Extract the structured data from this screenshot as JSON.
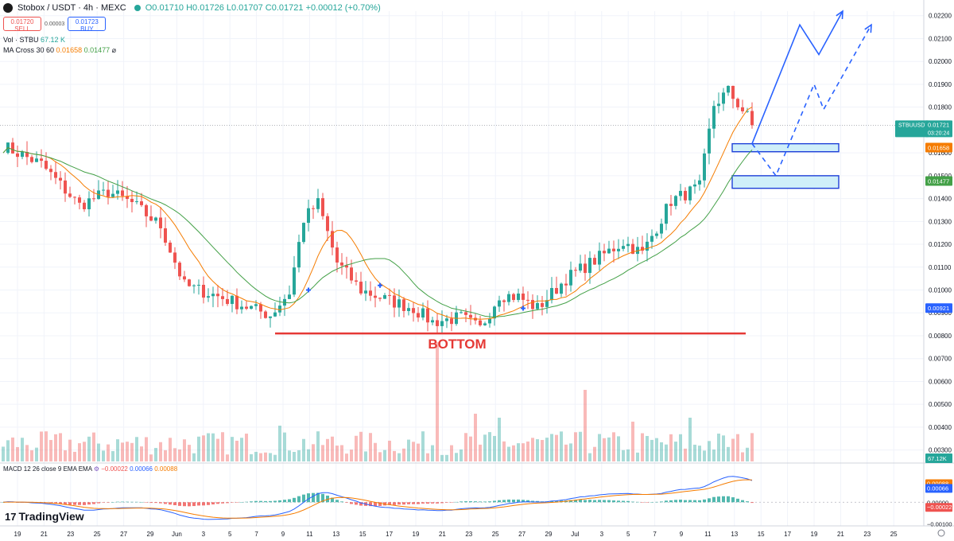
{
  "header": {
    "pair": "Stobox / USDT · 4h · MEXC",
    "ohlc": "O0.01710 H0.01726 L0.01707 C0.01721 +0.00012 (+0.70%)",
    "sell_price": "0.01720",
    "sell_label": "SELL",
    "spread": "0.00003",
    "buy_price": "0.01723",
    "buy_label": "BUY",
    "vol_label": "Vol · STBU",
    "vol_value": "67.12 K",
    "ma_label": "MA Cross 30 60",
    "ma_fast_value": "0.01658",
    "ma_slow_value": "0.01477",
    "ma_suffix": "⌀",
    "macd_label": "MACD 12 26 close 9 EMA EMA",
    "macd_hist_value": "−0.00022",
    "macd_value": "0.00066",
    "macd_signal_value": "0.00088",
    "tv_brand": "TradingView",
    "tv_mark": "17"
  },
  "colors": {
    "up": "#26a69a",
    "down": "#ef5350",
    "ma_fast": "#f57c00",
    "ma_slow": "#43a047",
    "projection": "#2962ff",
    "support": "#e53935",
    "zone_fill": "#cfeff9",
    "zone_border": "#1e40d8"
  },
  "chart_data": {
    "type": "candlestick",
    "price_axis": {
      "ticks": [
        "0.02200",
        "0.02100",
        "0.02000",
        "0.01900",
        "0.01800",
        "0.01600",
        "0.01500",
        "0.01400",
        "0.01300",
        "0.01200",
        "0.01100",
        "0.01000",
        "0.00900",
        "0.00800",
        "0.00700",
        "0.00600",
        "0.00500",
        "0.00400",
        "0.00300"
      ],
      "range": [
        0.0025,
        0.0222
      ]
    },
    "price_labels": [
      {
        "name": "STBUUSDT",
        "value": "0.01721",
        "sub": "03:20:24",
        "color": "#26a69a"
      },
      {
        "name": "ma-fast",
        "value": "0.01658",
        "color": "#f57c00"
      },
      {
        "name": "ma-slow",
        "value": "0.01477",
        "color": "#43a047"
      },
      {
        "name": "level",
        "value": "0.00921",
        "color": "#2962ff"
      },
      {
        "name": "volume",
        "value": "67.12K",
        "color": "#26a69a"
      }
    ],
    "macd_axis": {
      "ticks": [
        "0.00088",
        "0.00066",
        "0.00000",
        "−0.00022",
        "−0.00100"
      ],
      "tick_values": [
        0.00088,
        0.00066,
        0,
        -0.00022,
        -0.001
      ],
      "label_colors": [
        "#f57c00",
        "#2962ff",
        "",
        "#ef5350",
        ""
      ],
      "range": [
        -0.0011,
        0.0016
      ]
    },
    "time_axis": [
      "19",
      "21",
      "23",
      "25",
      "27",
      "29",
      "Jun",
      "3",
      "5",
      "7",
      "9",
      "11",
      "13",
      "15",
      "17",
      "19",
      "21",
      "23",
      "25",
      "27",
      "29",
      "Jul",
      "3",
      "5",
      "7",
      "9",
      "11",
      "13",
      "15",
      "17",
      "19",
      "21",
      "23",
      "25"
    ],
    "bars": 158,
    "anchors": [
      [
        0,
        0.0163
      ],
      [
        8,
        0.0155
      ],
      [
        16,
        0.0137
      ],
      [
        22,
        0.0143
      ],
      [
        27,
        0.0138
      ],
      [
        33,
        0.0128
      ],
      [
        38,
        0.0102
      ],
      [
        44,
        0.0098
      ],
      [
        52,
        0.0092
      ],
      [
        56,
        0.0089
      ],
      [
        60,
        0.0099
      ],
      [
        63,
        0.0131
      ],
      [
        66,
        0.0138
      ],
      [
        70,
        0.0112
      ],
      [
        75,
        0.01
      ],
      [
        80,
        0.0096
      ],
      [
        86,
        0.0092
      ],
      [
        90,
        0.0086
      ],
      [
        96,
        0.0088
      ],
      [
        100,
        0.0083
      ],
      [
        104,
        0.0098
      ],
      [
        108,
        0.0097
      ],
      [
        112,
        0.0092
      ],
      [
        118,
        0.0105
      ],
      [
        124,
        0.0113
      ],
      [
        130,
        0.0121
      ],
      [
        134,
        0.0116
      ],
      [
        140,
        0.0139
      ],
      [
        146,
        0.0145
      ],
      [
        149,
        0.0181
      ],
      [
        152,
        0.0187
      ],
      [
        156,
        0.0176
      ],
      [
        157,
        0.0172
      ]
    ],
    "annotations": {
      "support_label": "BOTTOM",
      "support_level": 0.0081,
      "zones": [
        {
          "from": 0.01605,
          "to": 0.0164
        },
        {
          "from": 0.01445,
          "to": 0.015
        }
      ],
      "projection_solid": [
        [
          157,
          0.0164
        ],
        [
          167,
          0.0216
        ],
        [
          171,
          0.0203
        ],
        [
          176,
          0.0222
        ]
      ],
      "projection_dashed": [
        [
          157,
          0.0164
        ],
        [
          162,
          0.015
        ],
        [
          170,
          0.019
        ],
        [
          172,
          0.0179
        ],
        [
          182,
          0.0216
        ]
      ],
      "cross_markers": [
        [
          64,
          0.01
        ],
        [
          79,
          0.0102
        ],
        [
          109,
          0.0092
        ]
      ]
    }
  }
}
